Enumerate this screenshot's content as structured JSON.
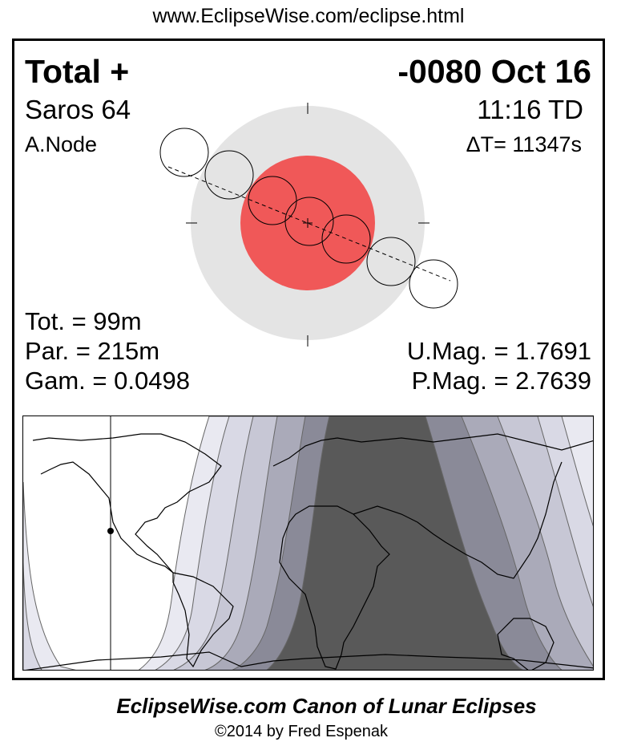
{
  "header": {
    "url": "www.EclipseWise.com/eclipse.html"
  },
  "eclipse": {
    "type": "Total  +",
    "date": "-0080 Oct 16",
    "saros": "Saros  64",
    "time": "11:16 TD",
    "node": "A.Node",
    "delta_t": "ΔT=  11347s",
    "totality": "Tot. =  99m",
    "partial": "Par. = 215m",
    "gamma": "Gam. = 0.0498",
    "umbral_mag": "U.Mag. = 1.7691",
    "penumbral_mag": "P.Mag. = 2.7639"
  },
  "colors": {
    "penumbra": "#e4e4e4",
    "umbra": "#f05858",
    "map_total": "#595959",
    "map_bands": [
      "#e9e9f1",
      "#d9d9e5",
      "#c7c7d5",
      "#aaaab9",
      "#8a8a98"
    ]
  },
  "footer": {
    "title": "EclipseWise.com Canon of Lunar Eclipses",
    "copyright": "©2014 by Fred Espenak"
  }
}
